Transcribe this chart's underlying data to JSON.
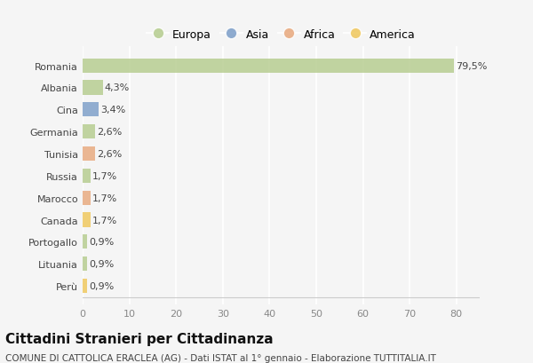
{
  "countries": [
    "Romania",
    "Albania",
    "Cina",
    "Germania",
    "Tunisia",
    "Russia",
    "Marocco",
    "Canada",
    "Portogallo",
    "Lituania",
    "Perù"
  ],
  "values": [
    79.5,
    4.3,
    3.4,
    2.6,
    2.6,
    1.7,
    1.7,
    1.7,
    0.9,
    0.9,
    0.9
  ],
  "labels": [
    "79,5%",
    "4,3%",
    "3,4%",
    "2,6%",
    "2,6%",
    "1,7%",
    "1,7%",
    "1,7%",
    "0,9%",
    "0,9%",
    "0,9%"
  ],
  "colors": [
    "#b5cc8e",
    "#b5cc8e",
    "#7b9dc8",
    "#b5cc8e",
    "#e8a87c",
    "#b5cc8e",
    "#e8a87c",
    "#f0c75a",
    "#b5cc8e",
    "#b5cc8e",
    "#f0c75a"
  ],
  "legend_labels": [
    "Europa",
    "Asia",
    "Africa",
    "America"
  ],
  "legend_colors": [
    "#b5cc8e",
    "#7b9dc8",
    "#e8a87c",
    "#f0c75a"
  ],
  "title": "Cittadini Stranieri per Cittadinanza",
  "subtitle": "COMUNE DI CATTOLICA ERACLEA (AG) - Dati ISTAT al 1° gennaio - Elaborazione TUTTITALIA.IT",
  "xlim": [
    0,
    85
  ],
  "xticks": [
    0,
    10,
    20,
    30,
    40,
    50,
    60,
    70,
    80
  ],
  "background_color": "#f5f5f5",
  "grid_color": "#ffffff",
  "bar_height": 0.65,
  "title_fontsize": 11,
  "subtitle_fontsize": 7.5,
  "tick_fontsize": 8,
  "label_fontsize": 8,
  "legend_fontsize": 9
}
